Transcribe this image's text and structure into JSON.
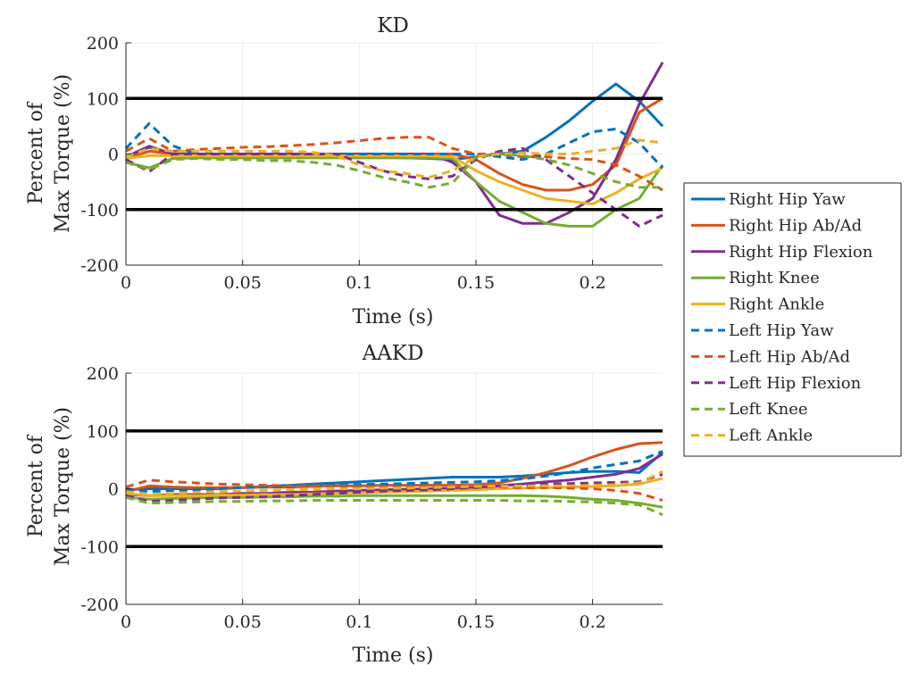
{
  "chart_data": [
    {
      "type": "line",
      "title": "KD",
      "xlabel": "Time (s)",
      "ylabel_line1": "Percent of",
      "ylabel_line2": "Max Torque (%)",
      "xlim": [
        0,
        0.23
      ],
      "ylim": [
        -200,
        200
      ],
      "xticks": [
        0,
        0.05,
        0.1,
        0.15,
        0.2
      ],
      "xtick_labels": [
        "0",
        "0.05",
        "0.1",
        "0.15",
        "0.2"
      ],
      "yticks": [
        -200,
        -100,
        0,
        100,
        200
      ],
      "ytick_labels": [
        "-200",
        "-100",
        "0",
        "100",
        "200"
      ],
      "reference_lines": [
        100,
        -100
      ],
      "grid": true,
      "x": [
        0,
        0.01,
        0.02,
        0.03,
        0.04,
        0.05,
        0.06,
        0.07,
        0.08,
        0.09,
        0.1,
        0.11,
        0.12,
        0.13,
        0.14,
        0.15,
        0.16,
        0.17,
        0.18,
        0.19,
        0.2,
        0.21,
        0.22,
        0.23
      ],
      "series": [
        {
          "name": "Right Hip Yaw",
          "style": "solid",
          "color": "#0072BD",
          "values": [
            -5,
            12,
            0,
            -3,
            -3,
            -3,
            -3,
            -3,
            -3,
            -4,
            -5,
            -6,
            -7,
            -8,
            -10,
            -5,
            0,
            5,
            30,
            60,
            95,
            126,
            95,
            50
          ]
        },
        {
          "name": "Right Hip Ab/Ad",
          "style": "solid",
          "color": "#D95319",
          "values": [
            -8,
            5,
            0,
            0,
            0,
            0,
            0,
            0,
            0,
            0,
            0,
            0,
            0,
            0,
            0,
            -10,
            -35,
            -55,
            -65,
            -65,
            -55,
            -20,
            75,
            100
          ]
        },
        {
          "name": "Right Hip Flexion",
          "style": "solid",
          "color": "#7E2F8E",
          "values": [
            -5,
            14,
            0,
            0,
            0,
            0,
            0,
            0,
            0,
            0,
            0,
            0,
            0,
            0,
            -15,
            -50,
            -110,
            -125,
            -125,
            -105,
            -80,
            -10,
            90,
            165
          ]
        },
        {
          "name": "Right Knee",
          "style": "solid",
          "color": "#77AC30",
          "values": [
            -15,
            -25,
            -8,
            -7,
            -7,
            -7,
            -7,
            -7,
            -7,
            -7,
            -7,
            -7,
            -7,
            -7,
            -8,
            -50,
            -85,
            -105,
            -125,
            -130,
            -130,
            -100,
            -80,
            -20
          ]
        },
        {
          "name": "Right Ankle",
          "style": "solid",
          "color": "#EDB120",
          "values": [
            -8,
            -3,
            -3,
            -3,
            -3,
            -3,
            -3,
            -3,
            -3,
            -3,
            -3,
            -3,
            -3,
            -3,
            -5,
            -30,
            -50,
            -65,
            -80,
            -85,
            -90,
            -70,
            -45,
            -25
          ]
        },
        {
          "name": "Left Hip Yaw",
          "style": "dashed",
          "color": "#0072BD",
          "values": [
            10,
            55,
            15,
            0,
            0,
            0,
            0,
            0,
            0,
            0,
            0,
            0,
            0,
            0,
            0,
            0,
            -5,
            -10,
            0,
            20,
            40,
            45,
            20,
            -25
          ]
        },
        {
          "name": "Left Hip Ab/Ad",
          "style": "dashed",
          "color": "#D95319",
          "values": [
            5,
            28,
            5,
            8,
            10,
            12,
            13,
            15,
            17,
            20,
            24,
            28,
            30,
            30,
            10,
            0,
            0,
            -5,
            -5,
            -8,
            -10,
            -20,
            -40,
            -65
          ]
        },
        {
          "name": "Left Hip Flexion",
          "style": "dashed",
          "color": "#7E2F8E",
          "values": [
            -10,
            -32,
            0,
            0,
            0,
            0,
            0,
            0,
            0,
            0,
            -15,
            -30,
            -40,
            -45,
            -40,
            -10,
            5,
            10,
            -10,
            -40,
            -70,
            -100,
            -130,
            -110
          ]
        },
        {
          "name": "Left Knee",
          "style": "dashed",
          "color": "#77AC30",
          "values": [
            -15,
            -28,
            -10,
            -8,
            -10,
            -10,
            -12,
            -12,
            -15,
            -20,
            -30,
            -42,
            -50,
            -60,
            -52,
            -5,
            0,
            -3,
            -10,
            -20,
            -35,
            -50,
            -60,
            -60
          ]
        },
        {
          "name": "Left Ankle",
          "style": "dashed",
          "color": "#EDB120",
          "values": [
            -5,
            10,
            5,
            5,
            5,
            5,
            5,
            5,
            3,
            -3,
            -20,
            -30,
            -35,
            -42,
            -30,
            -5,
            0,
            2,
            0,
            0,
            5,
            10,
            25,
            20
          ]
        }
      ]
    },
    {
      "type": "line",
      "title": "AAKD",
      "xlabel": "Time (s)",
      "ylabel_line1": "Percent of",
      "ylabel_line2": "Max Torque (%)",
      "xlim": [
        0,
        0.23
      ],
      "ylim": [
        -200,
        200
      ],
      "xticks": [
        0,
        0.05,
        0.1,
        0.15,
        0.2
      ],
      "xtick_labels": [
        "0",
        "0.05",
        "0.1",
        "0.15",
        "0.2"
      ],
      "yticks": [
        -200,
        -100,
        0,
        100,
        200
      ],
      "ytick_labels": [
        "-200",
        "-100",
        "0",
        "100",
        "200"
      ],
      "reference_lines": [
        100,
        -100
      ],
      "grid": true,
      "x": [
        0,
        0.01,
        0.02,
        0.03,
        0.04,
        0.05,
        0.06,
        0.07,
        0.08,
        0.09,
        0.1,
        0.11,
        0.12,
        0.13,
        0.14,
        0.15,
        0.16,
        0.17,
        0.18,
        0.19,
        0.2,
        0.21,
        0.22,
        0.23
      ],
      "series": [
        {
          "name": "Right Hip Yaw",
          "style": "solid",
          "color": "#0072BD",
          "values": [
            -2,
            0,
            0,
            0,
            0,
            2,
            4,
            6,
            8,
            10,
            12,
            14,
            16,
            18,
            20,
            20,
            20,
            22,
            25,
            28,
            30,
            30,
            28,
            63
          ]
        },
        {
          "name": "Right Hip Ab/Ad",
          "style": "solid",
          "color": "#D95319",
          "values": [
            -5,
            5,
            3,
            2,
            2,
            2,
            3,
            3,
            4,
            5,
            5,
            6,
            6,
            6,
            6,
            7,
            10,
            18,
            28,
            40,
            55,
            68,
            78,
            80
          ]
        },
        {
          "name": "Right Hip Flexion",
          "style": "solid",
          "color": "#7E2F8E",
          "values": [
            -10,
            -12,
            -10,
            -10,
            -10,
            -8,
            -8,
            -6,
            -6,
            -4,
            -3,
            -2,
            -1,
            0,
            1,
            2,
            5,
            8,
            12,
            15,
            20,
            25,
            35,
            60
          ]
        },
        {
          "name": "Right Knee",
          "style": "solid",
          "color": "#77AC30",
          "values": [
            -15,
            -18,
            -17,
            -16,
            -15,
            -15,
            -14,
            -14,
            -13,
            -13,
            -12,
            -12,
            -12,
            -12,
            -12,
            -12,
            -12,
            -12,
            -13,
            -15,
            -18,
            -20,
            -25,
            -32
          ]
        },
        {
          "name": "Right Ankle",
          "style": "solid",
          "color": "#EDB120",
          "values": [
            -8,
            -12,
            -12,
            -12,
            -11,
            -11,
            -10,
            -10,
            -9,
            -8,
            -7,
            -6,
            -5,
            -4,
            -3,
            -2,
            0,
            1,
            2,
            3,
            4,
            5,
            8,
            18
          ]
        },
        {
          "name": "Left Hip Yaw",
          "style": "dashed",
          "color": "#0072BD",
          "values": [
            0,
            -5,
            -3,
            -2,
            0,
            2,
            3,
            4,
            5,
            6,
            7,
            8,
            9,
            10,
            11,
            12,
            14,
            17,
            22,
            28,
            36,
            42,
            48,
            65
          ]
        },
        {
          "name": "Left Hip Ab/Ad",
          "style": "dashed",
          "color": "#D95319",
          "values": [
            3,
            15,
            12,
            10,
            8,
            7,
            6,
            5,
            5,
            5,
            4,
            4,
            4,
            4,
            3,
            3,
            3,
            2,
            2,
            1,
            0,
            -3,
            -8,
            -20
          ]
        },
        {
          "name": "Left Hip Flexion",
          "style": "dashed",
          "color": "#7E2F8E",
          "values": [
            -12,
            -22,
            -20,
            -18,
            -16,
            -15,
            -14,
            -12,
            -10,
            -8,
            -6,
            -4,
            -3,
            -2,
            0,
            2,
            4,
            6,
            8,
            9,
            10,
            11,
            12,
            25
          ]
        },
        {
          "name": "Left Knee",
          "style": "dashed",
          "color": "#77AC30",
          "values": [
            -15,
            -25,
            -24,
            -23,
            -22,
            -22,
            -21,
            -21,
            -20,
            -20,
            -20,
            -20,
            -20,
            -20,
            -20,
            -20,
            -20,
            -21,
            -21,
            -22,
            -23,
            -25,
            -28,
            -45
          ]
        },
        {
          "name": "Left Ankle",
          "style": "dashed",
          "color": "#EDB120",
          "values": [
            -5,
            -10,
            -8,
            -6,
            -5,
            -4,
            -3,
            -2,
            -1,
            0,
            0,
            1,
            1,
            2,
            3,
            4,
            4,
            5,
            5,
            5,
            6,
            7,
            10,
            30
          ]
        }
      ]
    }
  ],
  "legend": {
    "placement": "right",
    "entries": [
      {
        "label": "Right Hip Yaw",
        "style": "solid",
        "color": "#0072BD"
      },
      {
        "label": "Right Hip Ab/Ad",
        "style": "solid",
        "color": "#D95319"
      },
      {
        "label": "Right Hip Flexion",
        "style": "solid",
        "color": "#7E2F8E"
      },
      {
        "label": "Right Knee",
        "style": "solid",
        "color": "#77AC30"
      },
      {
        "label": "Right Ankle",
        "style": "solid",
        "color": "#EDB120"
      },
      {
        "label": "Left Hip Yaw",
        "style": "dashed",
        "color": "#0072BD"
      },
      {
        "label": "Left Hip Ab/Ad",
        "style": "dashed",
        "color": "#D95319"
      },
      {
        "label": "Left Hip Flexion",
        "style": "dashed",
        "color": "#7E2F8E"
      },
      {
        "label": "Left Knee",
        "style": "dashed",
        "color": "#77AC30"
      },
      {
        "label": "Left Ankle",
        "style": "dashed",
        "color": "#EDB120"
      }
    ]
  }
}
